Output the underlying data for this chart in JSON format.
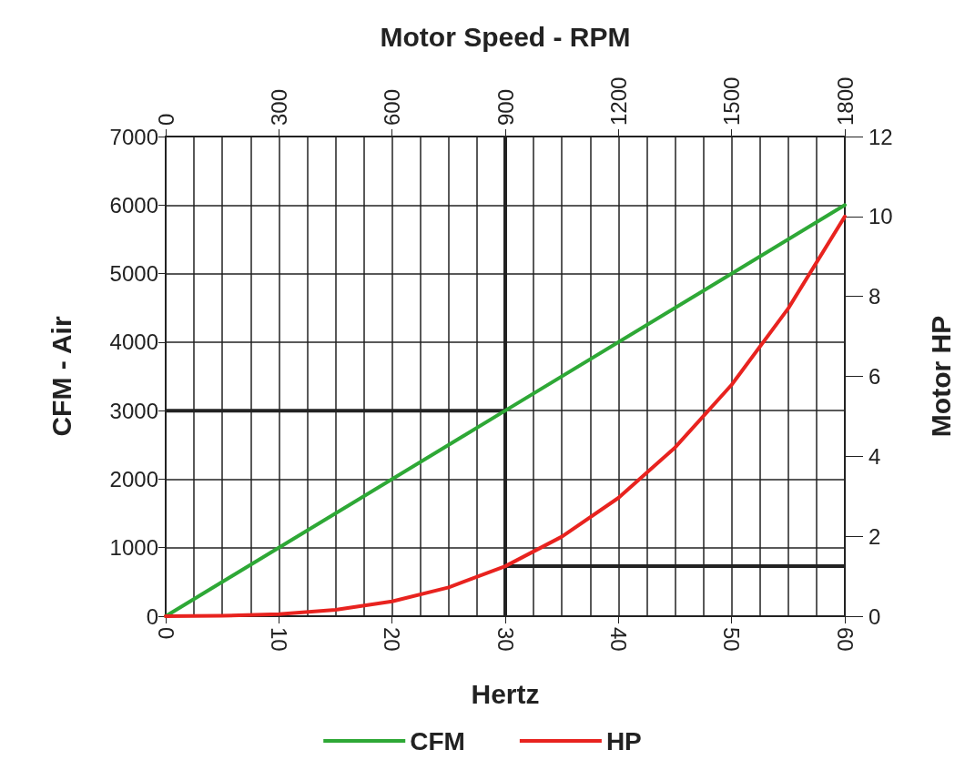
{
  "chart_data": {
    "type": "line",
    "xlabel": "Hertz",
    "x2label": "Motor Speed - RPM",
    "ylabel": "CFM - Air",
    "y2label": "Motor HP",
    "xlim": [
      0,
      60
    ],
    "xticks": [
      0,
      10,
      20,
      30,
      40,
      50,
      60
    ],
    "x2lim": [
      0,
      1800
    ],
    "x2ticks": [
      0,
      300,
      600,
      900,
      1200,
      1500,
      1800
    ],
    "ylim": [
      0,
      7000
    ],
    "yticks": [
      0,
      1000,
      2000,
      3000,
      4000,
      5000,
      6000,
      7000
    ],
    "y2lim": [
      0,
      12
    ],
    "y2ticks": [
      0,
      2,
      4,
      6,
      8,
      10,
      12
    ],
    "series": [
      {
        "name": "CFM",
        "color": "#2ea836",
        "x": [
          0,
          30,
          60
        ],
        "values": [
          0,
          3000,
          6000
        ]
      },
      {
        "name": "HP",
        "color": "#e8231f",
        "axis": "y2",
        "x": [
          0,
          5,
          10,
          15,
          20,
          25,
          30,
          35,
          40,
          45,
          50,
          55,
          60
        ],
        "values": [
          0,
          0.01,
          0.05,
          0.16,
          0.37,
          0.72,
          1.25,
          1.99,
          2.96,
          4.22,
          5.79,
          7.7,
          10
        ]
      }
    ],
    "ref_lines": [
      {
        "axis": "x",
        "value": 30,
        "color": "#222222",
        "line_style": "solid"
      },
      {
        "axis": "y",
        "value": 3000,
        "color": "#222222",
        "line_style": "solid"
      },
      {
        "axis": "y2",
        "value": 1.25,
        "color": "#222222",
        "line_style": "solid"
      }
    ],
    "grid": true,
    "legend": "bottom",
    "marker": "none",
    "line_style": "solid"
  }
}
